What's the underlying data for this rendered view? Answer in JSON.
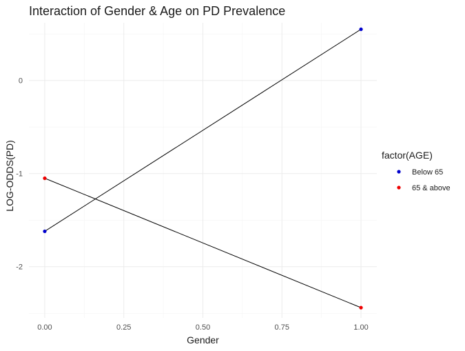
{
  "chart_data": {
    "type": "line",
    "title": "Interaction of Gender & Age on PD Prevalence",
    "xlabel": "Gender",
    "ylabel": "LOG-ODDS(PD)",
    "x": [
      0,
      1
    ],
    "x_ticks": [
      0,
      0.25,
      0.5,
      0.75,
      1
    ],
    "x_tick_labels": [
      "0.00",
      "0.25",
      "0.50",
      "0.75",
      "1.00"
    ],
    "y_ticks": [
      0,
      -1,
      -2
    ],
    "y_tick_labels": [
      "0",
      "-1",
      "-2"
    ],
    "xlim": [
      -0.05,
      1.05
    ],
    "ylim": [
      -2.55,
      0.62
    ],
    "grid": true,
    "legend": {
      "title": "factor(AGE)",
      "placement": "right"
    },
    "line_color": "#000000",
    "series": [
      {
        "name": "Below 65",
        "color": "#0000cd",
        "values": [
          -1.62,
          0.55
        ]
      },
      {
        "name": "65 & above",
        "color": "#ee0000",
        "values": [
          -1.05,
          -2.44
        ]
      }
    ]
  }
}
